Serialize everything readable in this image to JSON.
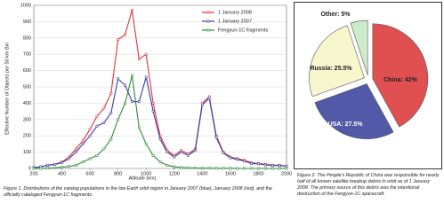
{
  "chart_data": [
    {
      "type": "line",
      "x_label": "Altitude (km)",
      "y_label": "Effective Number of Objects per 50 km Bin",
      "x": [
        200,
        250,
        300,
        350,
        400,
        450,
        500,
        550,
        600,
        650,
        700,
        750,
        800,
        850,
        900,
        950,
        1000,
        1050,
        1100,
        1150,
        1200,
        1250,
        1300,
        1350,
        1400,
        1450,
        1500,
        1550,
        1600,
        1650,
        1700,
        1750,
        1800,
        1850,
        1900,
        1950,
        2000
      ],
      "series": [
        {
          "name": "1 January 2008",
          "color": "#d9363e",
          "values": [
            5,
            10,
            20,
            25,
            40,
            70,
            120,
            170,
            240,
            320,
            370,
            460,
            790,
            820,
            970,
            670,
            700,
            400,
            200,
            110,
            80,
            110,
            90,
            120,
            400,
            440,
            200,
            100,
            70,
            60,
            50,
            35,
            30,
            25,
            20,
            20,
            15
          ]
        },
        {
          "name": "1 January 2007",
          "color": "#3b3ea3",
          "values": [
            5,
            10,
            20,
            25,
            35,
            60,
            100,
            150,
            200,
            260,
            280,
            340,
            550,
            510,
            410,
            410,
            560,
            350,
            180,
            100,
            70,
            100,
            80,
            110,
            390,
            430,
            190,
            95,
            65,
            55,
            45,
            30,
            28,
            22,
            18,
            18,
            14
          ]
        },
        {
          "name": "Fengyun-1C fragments",
          "color": "#2e8b3a",
          "values": [
            0,
            0,
            2,
            4,
            8,
            12,
            20,
            40,
            60,
            80,
            120,
            180,
            300,
            400,
            570,
            250,
            150,
            80,
            40,
            20,
            10,
            6,
            4,
            3,
            2,
            2,
            1,
            1,
            1,
            0,
            0,
            0,
            0,
            0,
            0,
            0,
            0
          ]
        }
      ],
      "xlim": [
        200,
        2000
      ],
      "xticks": [
        200,
        400,
        600,
        800,
        1000,
        1200,
        1400,
        1600,
        1800,
        2000
      ],
      "ylim": [
        0,
        1000
      ],
      "yticks": [
        0,
        100,
        200,
        300,
        400,
        500,
        600,
        700,
        800,
        900,
        1000
      ],
      "grid": true,
      "legend": "top-right",
      "caption": "Figure 1.  Distributions of the catalog populations in the low Earth orbit region in January 2007 (blue), January 2008 (red), and the officially cataloged Fengyun-1C fragments."
    },
    {
      "type": "pie",
      "values": [
        42,
        27.5,
        25.5,
        5
      ],
      "value_labels": [
        "China: 42%",
        "USA: 27.5%",
        "Russia: 25.5%",
        "Other: 5%"
      ],
      "colors": [
        "#e05050",
        "#5159a8",
        "#f7f6cd",
        "#cdeacb"
      ],
      "caption": "Figure 2.  The People's Republic of China was responsible for nearly half of all known satellite breakup debris in orbit as of 1 January 2008.  The primary source of this debris was the intentional destruction of the Fengyun-1C spacecraft."
    }
  ]
}
